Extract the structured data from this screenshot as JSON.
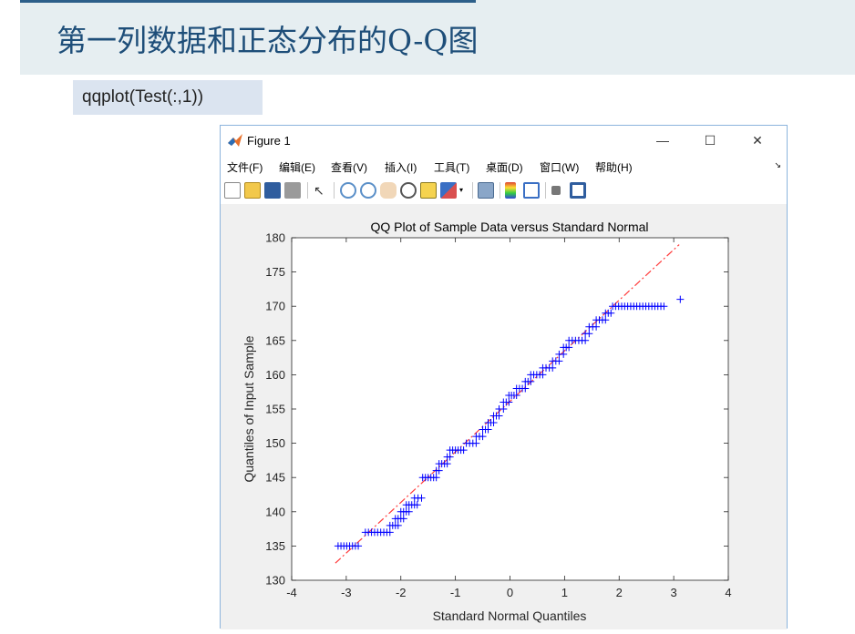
{
  "slide": {
    "title": "第一列数据和正态分布的Q-Q图",
    "code": "qqplot(Test(:,1))"
  },
  "window": {
    "title": "Figure 1",
    "minimize_glyph": "—",
    "maximize_glyph": "☐",
    "close_glyph": "✕",
    "menu": [
      "文件(F)",
      "编辑(E)",
      "查看(V)",
      "插入(I)",
      "工具(T)",
      "桌面(D)",
      "窗口(W)",
      "帮助(H)"
    ],
    "toolbar_icons": [
      "new-file-icon",
      "open-folder-icon",
      "save-icon",
      "print-icon",
      "pointer-icon",
      "zoom-in-icon",
      "zoom-out-icon",
      "pan-icon",
      "rotate-icon",
      "data-cursor-icon",
      "brush-icon",
      "link-plot-icon",
      "colorbar-icon",
      "legend-icon",
      "hide-plot-tools-icon",
      "show-plot-tools-icon"
    ]
  },
  "chart_data": {
    "type": "scatter",
    "title": "QQ Plot of Sample Data versus Standard Normal",
    "xlabel": "Standard Normal Quantiles",
    "ylabel": "Quantiles of Input Sample",
    "xlim": [
      -4,
      4
    ],
    "ylim": [
      130,
      180
    ],
    "xticks": [
      "-4",
      "-3",
      "-2",
      "-1",
      "0",
      "1",
      "2",
      "3",
      "4"
    ],
    "yticks": [
      "130",
      "135",
      "140",
      "145",
      "150",
      "155",
      "160",
      "165",
      "170",
      "175",
      "180"
    ],
    "marker": "+",
    "marker_color": "#0000ff",
    "reference_line": {
      "x": [
        -3.2,
        3.1
      ],
      "y": [
        132.5,
        179
      ],
      "color": "#ff3b3b",
      "style": "dash-dot"
    },
    "sample_steps": [
      {
        "y": 135,
        "x": [
          -3.15,
          -2.78
        ]
      },
      {
        "y": 137,
        "x": [
          -2.65,
          -2.2
        ]
      },
      {
        "y": 138,
        "x": [
          -2.2,
          -2.05
        ]
      },
      {
        "y": 139,
        "x": [
          -2.1,
          -1.95
        ]
      },
      {
        "y": 140,
        "x": [
          -2.0,
          -1.85
        ]
      },
      {
        "y": 141,
        "x": [
          -1.9,
          -1.7
        ]
      },
      {
        "y": 142,
        "x": [
          -1.75,
          -1.62
        ]
      },
      {
        "y": 145,
        "x": [
          -1.6,
          -1.35
        ]
      },
      {
        "y": 146,
        "x": [
          -1.35,
          -1.3
        ]
      },
      {
        "y": 147,
        "x": [
          -1.3,
          -1.15
        ]
      },
      {
        "y": 148,
        "x": [
          -1.15,
          -1.1
        ]
      },
      {
        "y": 149,
        "x": [
          -1.1,
          -0.85
        ]
      },
      {
        "y": 150,
        "x": [
          -0.8,
          -0.62
        ]
      },
      {
        "y": 151,
        "x": [
          -0.62,
          -0.5
        ]
      },
      {
        "y": 152,
        "x": [
          -0.5,
          -0.4
        ]
      },
      {
        "y": 153,
        "x": [
          -0.4,
          -0.3
        ]
      },
      {
        "y": 154,
        "x": [
          -0.3,
          -0.2
        ]
      },
      {
        "y": 155,
        "x": [
          -0.2,
          -0.12
        ]
      },
      {
        "y": 156,
        "x": [
          -0.12,
          -0.02
        ]
      },
      {
        "y": 157,
        "x": [
          -0.02,
          0.12
        ]
      },
      {
        "y": 158,
        "x": [
          0.12,
          0.28
        ]
      },
      {
        "y": 159,
        "x": [
          0.28,
          0.38
        ]
      },
      {
        "y": 160,
        "x": [
          0.38,
          0.6
        ]
      },
      {
        "y": 161,
        "x": [
          0.6,
          0.78
        ]
      },
      {
        "y": 162,
        "x": [
          0.78,
          0.9
        ]
      },
      {
        "y": 163,
        "x": [
          0.9,
          0.98
        ]
      },
      {
        "y": 164,
        "x": [
          0.98,
          1.08
        ]
      },
      {
        "y": 165,
        "x": [
          1.08,
          1.38
        ]
      },
      {
        "y": 166,
        "x": [
          1.38,
          1.45
        ]
      },
      {
        "y": 167,
        "x": [
          1.45,
          1.58
        ]
      },
      {
        "y": 168,
        "x": [
          1.58,
          1.75
        ]
      },
      {
        "y": 169,
        "x": [
          1.75,
          1.85
        ]
      },
      {
        "y": 170,
        "x": [
          1.88,
          2.82
        ]
      },
      {
        "y": 171,
        "x": [
          3.12,
          3.12
        ]
      }
    ]
  }
}
